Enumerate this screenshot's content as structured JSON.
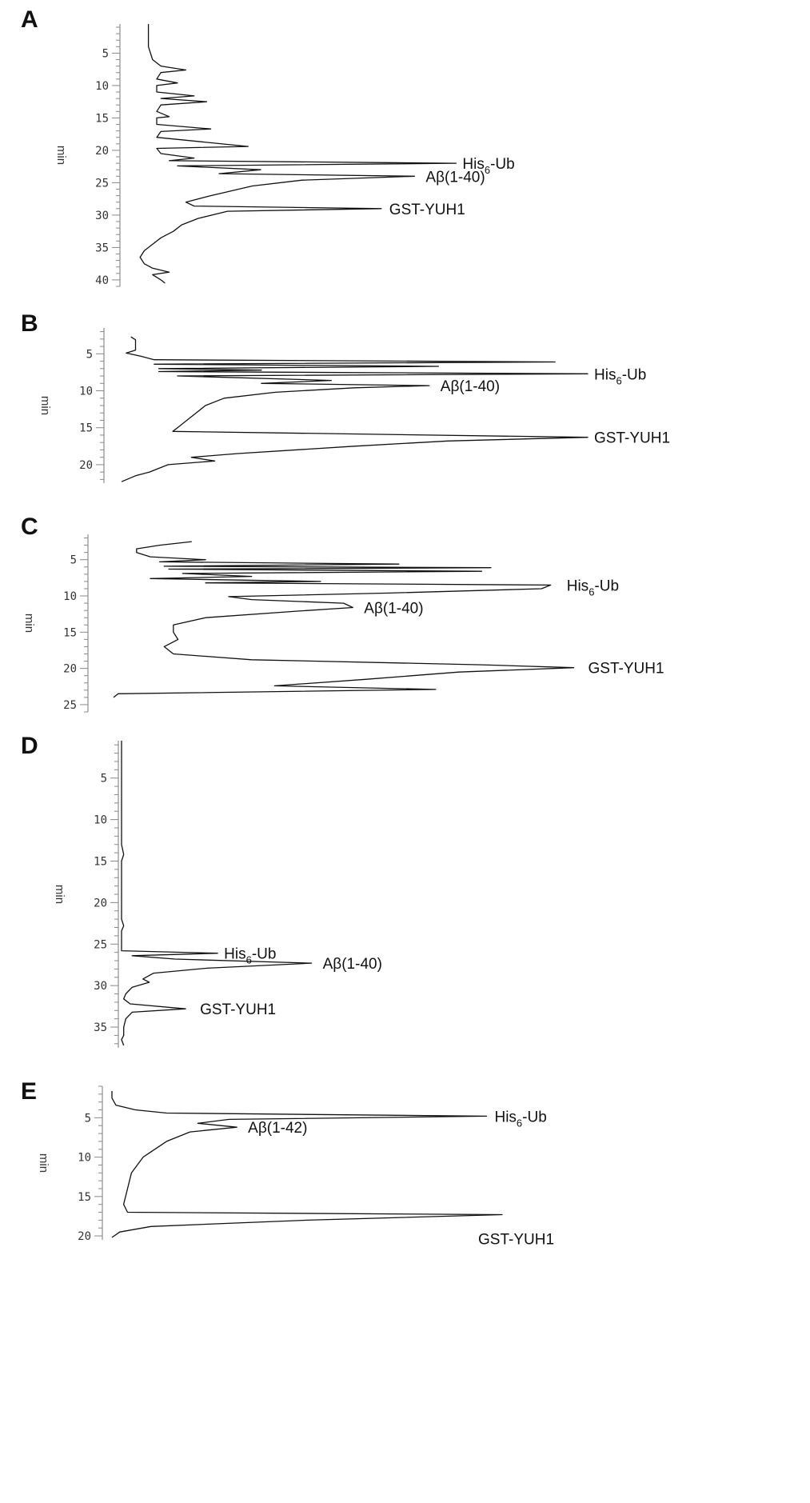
{
  "chart_data": [
    {
      "type": "line",
      "panel": "A",
      "ylabel": "min",
      "yticks": [
        5,
        10,
        15,
        20,
        25,
        30,
        35,
        40
      ],
      "ylim": [
        0.5,
        41
      ],
      "peaks": [
        {
          "name": "His",
          "sub": "6",
          "tail": "-Ub",
          "time": 22.0,
          "height": 0.77
        },
        {
          "name": "Aβ(1-40)",
          "sub": "",
          "tail": "",
          "time": 24.0,
          "height": 0.67
        },
        {
          "name": "GST-YUH1",
          "sub": "",
          "tail": "",
          "time": 29.0,
          "height": 0.59
        }
      ],
      "trace": [
        [
          0.5,
          0.03
        ],
        [
          4,
          0.03
        ],
        [
          6,
          0.04
        ],
        [
          7,
          0.06
        ],
        [
          7.6,
          0.12
        ],
        [
          8,
          0.06
        ],
        [
          9,
          0.05
        ],
        [
          9.6,
          0.1
        ],
        [
          10,
          0.05
        ],
        [
          11,
          0.05
        ],
        [
          11.6,
          0.14
        ],
        [
          12,
          0.06
        ],
        [
          12.5,
          0.17
        ],
        [
          13,
          0.06
        ],
        [
          14,
          0.05
        ],
        [
          14.8,
          0.08
        ],
        [
          15,
          0.05
        ],
        [
          16,
          0.05
        ],
        [
          16.7,
          0.18
        ],
        [
          17.1,
          0.06
        ],
        [
          18,
          0.05
        ],
        [
          19.4,
          0.27
        ],
        [
          19.7,
          0.05
        ],
        [
          20.5,
          0.06
        ],
        [
          21.2,
          0.14
        ],
        [
          21.6,
          0.08
        ],
        [
          22,
          0.77
        ],
        [
          22.4,
          0.1
        ],
        [
          23,
          0.3
        ],
        [
          23.6,
          0.2
        ],
        [
          24,
          0.67
        ],
        [
          24.6,
          0.4
        ],
        [
          25.5,
          0.28
        ],
        [
          27,
          0.18
        ],
        [
          28,
          0.12
        ],
        [
          28.6,
          0.14
        ],
        [
          29,
          0.59
        ],
        [
          29.4,
          0.22
        ],
        [
          30.5,
          0.15
        ],
        [
          31.5,
          0.11
        ],
        [
          32.5,
          0.09
        ],
        [
          33.5,
          0.06
        ],
        [
          34.5,
          0.04
        ],
        [
          35.5,
          0.02
        ],
        [
          36.5,
          0.01
        ],
        [
          37.5,
          0.02
        ],
        [
          38.2,
          0.04
        ],
        [
          38.8,
          0.08
        ],
        [
          39.2,
          0.04
        ],
        [
          40,
          0.06
        ],
        [
          40.5,
          0.07
        ]
      ]
    },
    {
      "type": "line",
      "panel": "B",
      "ylabel": "min",
      "yticks": [
        5,
        10,
        15,
        20
      ],
      "ylim": [
        1.5,
        22.5
      ],
      "peaks": [
        {
          "name": "His",
          "sub": "6",
          "tail": "-Ub",
          "time": 7.7,
          "height": 1.0
        },
        {
          "name": "Aβ(1-40)",
          "sub": "",
          "tail": "",
          "time": 9.3,
          "height": 0.66
        },
        {
          "name": "GST-YUH1",
          "sub": "",
          "tail": "",
          "time": 16.3,
          "height": 1.0
        }
      ],
      "trace": [
        [
          2.7,
          0.02
        ],
        [
          3.1,
          0.03
        ],
        [
          4.5,
          0.03
        ],
        [
          4.9,
          0.01
        ],
        [
          5.3,
          0.04
        ],
        [
          5.8,
          0.07
        ],
        [
          6.1,
          0.93
        ],
        [
          6.4,
          0.07
        ],
        [
          6.7,
          0.68
        ],
        [
          7.0,
          0.08
        ],
        [
          7.2,
          0.3
        ],
        [
          7.4,
          0.08
        ],
        [
          7.7,
          1.0
        ],
        [
          8.0,
          0.12
        ],
        [
          8.6,
          0.45
        ],
        [
          9.0,
          0.3
        ],
        [
          9.3,
          0.66
        ],
        [
          9.6,
          0.5
        ],
        [
          10.2,
          0.33
        ],
        [
          11,
          0.22
        ],
        [
          12,
          0.18
        ],
        [
          13,
          0.16
        ],
        [
          14,
          0.14
        ],
        [
          15,
          0.12
        ],
        [
          15.5,
          0.11
        ],
        [
          16.3,
          1.0
        ],
        [
          16.8,
          0.7
        ],
        [
          17.5,
          0.5
        ],
        [
          18.5,
          0.25
        ],
        [
          19.0,
          0.15
        ],
        [
          19.5,
          0.2
        ],
        [
          20.0,
          0.1
        ],
        [
          21.0,
          0.06
        ],
        [
          21.5,
          0.03
        ],
        [
          22.3,
          0.0
        ]
      ]
    },
    {
      "type": "line",
      "panel": "C",
      "ylabel": "min",
      "yticks": [
        5,
        10,
        15,
        20,
        25
      ],
      "ylim": [
        1.5,
        26
      ],
      "peaks": [
        {
          "name": "His",
          "sub": "6",
          "tail": "-Ub",
          "time": 8.5,
          "height": 0.95
        },
        {
          "name": "Aβ(1-40)",
          "sub": "",
          "tail": "",
          "time": 11.6,
          "height": 0.52
        },
        {
          "name": "GST-YUH1",
          "sub": "",
          "tail": "",
          "time": 19.9,
          "height": 1.0
        }
      ],
      "trace": [
        [
          2.5,
          0.17
        ],
        [
          3.0,
          0.1
        ],
        [
          3.5,
          0.05
        ],
        [
          4.0,
          0.05
        ],
        [
          4.6,
          0.08
        ],
        [
          5.0,
          0.2
        ],
        [
          5.3,
          0.1
        ],
        [
          5.6,
          0.62
        ],
        [
          5.9,
          0.11
        ],
        [
          6.1,
          0.82
        ],
        [
          6.3,
          0.12
        ],
        [
          6.6,
          0.8
        ],
        [
          6.9,
          0.15
        ],
        [
          7.3,
          0.3
        ],
        [
          7.6,
          0.08
        ],
        [
          8.0,
          0.45
        ],
        [
          8.2,
          0.2
        ],
        [
          8.5,
          0.95
        ],
        [
          9.0,
          0.93
        ],
        [
          9.6,
          0.6
        ],
        [
          10.1,
          0.25
        ],
        [
          10.5,
          0.3
        ],
        [
          11.0,
          0.5
        ],
        [
          11.6,
          0.52
        ],
        [
          12.1,
          0.4
        ],
        [
          13.0,
          0.2
        ],
        [
          14.0,
          0.13
        ],
        [
          15.0,
          0.13
        ],
        [
          16.0,
          0.14
        ],
        [
          17.0,
          0.11
        ],
        [
          18.0,
          0.13
        ],
        [
          18.8,
          0.3
        ],
        [
          19.5,
          0.8
        ],
        [
          19.9,
          1.0
        ],
        [
          20.5,
          0.75
        ],
        [
          21.5,
          0.55
        ],
        [
          22.4,
          0.35
        ],
        [
          22.9,
          0.7
        ],
        [
          23.5,
          0.01
        ],
        [
          24.0,
          0.0
        ]
      ]
    },
    {
      "type": "line",
      "panel": "D",
      "ylabel": "min",
      "yticks": [
        5,
        10,
        15,
        20,
        25,
        30,
        35
      ],
      "ylim": [
        0.5,
        37.5
      ],
      "peaks": [
        {
          "name": "His",
          "sub": "6",
          "tail": "-Ub",
          "time": 26.1,
          "height": 0.45
        },
        {
          "name": "Aβ(1-40)",
          "sub": "",
          "tail": "",
          "time": 27.3,
          "height": 0.89
        },
        {
          "name": "GST-YUH1",
          "sub": "",
          "tail": "",
          "time": 32.8,
          "height": 0.3
        }
      ],
      "trace": [
        [
          0.5,
          0.0
        ],
        [
          13,
          0.0
        ],
        [
          14.2,
          0.01
        ],
        [
          15,
          0.0
        ],
        [
          22,
          0.0
        ],
        [
          22.8,
          0.01
        ],
        [
          23.4,
          0.0
        ],
        [
          25.8,
          0.0
        ],
        [
          26.1,
          0.45
        ],
        [
          26.4,
          0.05
        ],
        [
          26.8,
          0.25
        ],
        [
          27.3,
          0.89
        ],
        [
          27.9,
          0.4
        ],
        [
          28.5,
          0.15
        ],
        [
          29.2,
          0.1
        ],
        [
          29.6,
          0.13
        ],
        [
          30.2,
          0.05
        ],
        [
          31,
          0.02
        ],
        [
          31.6,
          0.01
        ],
        [
          32.2,
          0.04
        ],
        [
          32.8,
          0.3
        ],
        [
          33.2,
          0.05
        ],
        [
          34,
          0.02
        ],
        [
          35,
          0.01
        ],
        [
          36,
          0.01
        ],
        [
          36.5,
          0.0
        ],
        [
          37.2,
          0.01
        ]
      ]
    },
    {
      "type": "line",
      "panel": "E",
      "ylabel": "min",
      "yticks": [
        5,
        10,
        15,
        20
      ],
      "ylim": [
        1.0,
        20.5
      ],
      "peaks": [
        {
          "name": "His",
          "sub": "6",
          "tail": "-Ub",
          "time": 4.8,
          "height": 0.96
        },
        {
          "name": "Aβ(1-42)",
          "sub": "",
          "tail": "",
          "time": 6.2,
          "height": 0.32
        },
        {
          "name": "GST-YUH1",
          "sub": "",
          "tail": "",
          "time": 17.3,
          "height": 1.0
        }
      ],
      "trace": [
        [
          1.6,
          0.0
        ],
        [
          2.5,
          0.0
        ],
        [
          3.4,
          0.01
        ],
        [
          4.0,
          0.06
        ],
        [
          4.4,
          0.14
        ],
        [
          4.8,
          0.96
        ],
        [
          5.2,
          0.3
        ],
        [
          5.7,
          0.22
        ],
        [
          6.2,
          0.32
        ],
        [
          6.8,
          0.2
        ],
        [
          8,
          0.14
        ],
        [
          10,
          0.08
        ],
        [
          12,
          0.05
        ],
        [
          14,
          0.04
        ],
        [
          16,
          0.03
        ],
        [
          17.0,
          0.04
        ],
        [
          17.3,
          1.0
        ],
        [
          18.0,
          0.5
        ],
        [
          18.8,
          0.1
        ],
        [
          19.5,
          0.02
        ],
        [
          20.2,
          0.0
        ]
      ]
    }
  ]
}
